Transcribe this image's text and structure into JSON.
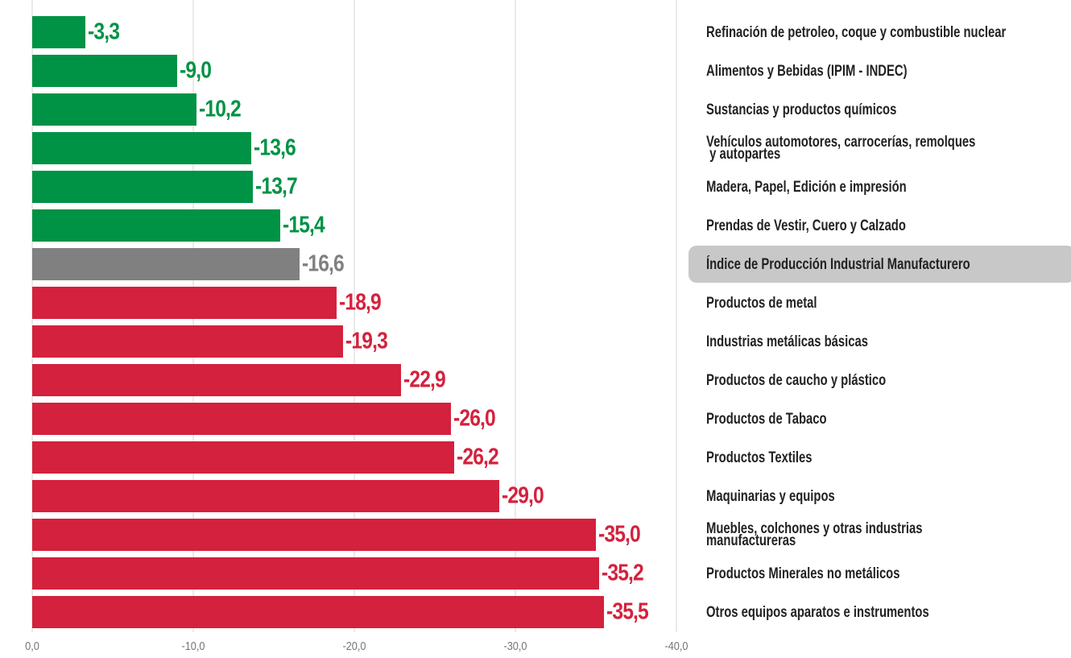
{
  "chart_data": {
    "type": "bar",
    "orientation": "horizontal",
    "categories": [
      "Refinación de petroleo, coque y combustible nuclear",
      "Alimentos y Bebidas (IPIM - INDEC)",
      "Sustancias y productos químicos",
      "Vehículos automotores, carrocerías, remolques\n y autopartes",
      "Madera, Papel, Edición e impresión",
      "Prendas de Vestir, Cuero y Calzado",
      "Índice de Producción Industrial Manufacturero",
      "Productos de metal",
      "Industrias metálicas básicas",
      "Productos de caucho y plástico",
      "Productos de Tabaco",
      "Productos Textiles",
      "Maquinarias y equipos",
      "Muebles, colchones y otras industrias\nmanufactureras",
      "Productos Minerales no metálicos",
      "Otros equipos aparatos e instrumentos"
    ],
    "values": [
      -3.3,
      -9.0,
      -10.2,
      -13.6,
      -13.7,
      -15.4,
      -16.6,
      -18.9,
      -19.3,
      -22.9,
      -26.0,
      -26.2,
      -29.0,
      -35.0,
      -35.2,
      -35.5
    ],
    "value_labels": [
      "-3,3",
      "-9,0",
      "-10,2",
      "-13,6",
      "-13,7",
      "-15,4",
      "-16,6",
      "-18,9",
      "-19,3",
      "-22,9",
      "-26,0",
      "-26,2",
      "-29,0",
      "-35,0",
      "-35,2",
      "-35,5"
    ],
    "colors": [
      "#009245",
      "#009245",
      "#009245",
      "#009245",
      "#009245",
      "#009245",
      "#808080",
      "#d4213d",
      "#d4213d",
      "#d4213d",
      "#d4213d",
      "#d4213d",
      "#d4213d",
      "#d4213d",
      "#d4213d",
      "#d4213d"
    ],
    "highlight": 6,
    "xlim": [
      0,
      -40
    ],
    "xticks": [
      {
        "value": 0,
        "label": "0,0"
      },
      {
        "value": -10,
        "label": "-10,0"
      },
      {
        "value": -20,
        "label": "-20,0"
      },
      {
        "value": -30,
        "label": "-30,0"
      },
      {
        "value": -40,
        "label": "-40,0"
      }
    ],
    "grid": true
  }
}
